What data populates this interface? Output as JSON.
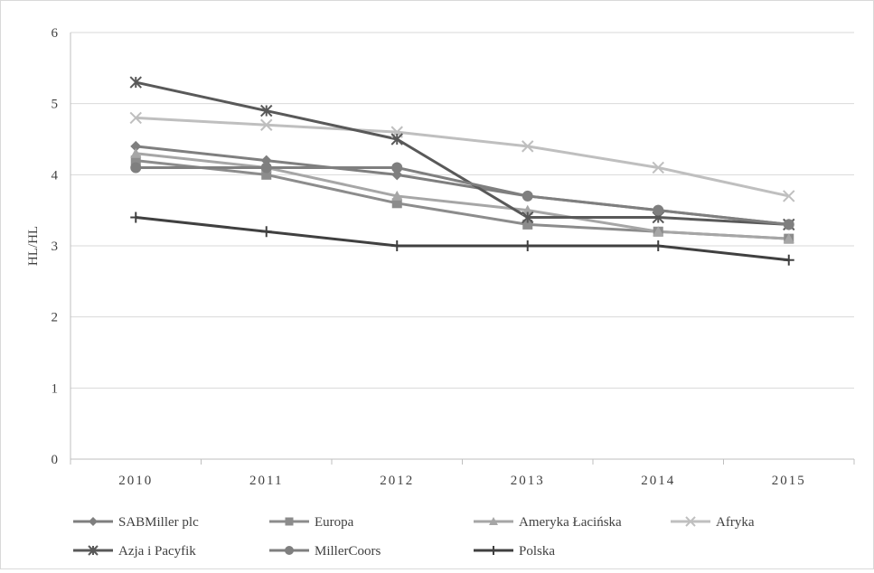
{
  "chart_data": {
    "type": "line",
    "title": "",
    "xlabel": "",
    "ylabel": "HL/HL",
    "categories": [
      "2010",
      "2011",
      "2012",
      "2013",
      "2014",
      "2015"
    ],
    "y_ticks": [
      "0",
      "1",
      "2",
      "3",
      "4",
      "5",
      "6"
    ],
    "ylim": [
      0,
      6
    ],
    "grid": "horizontal",
    "legend_position": "bottom",
    "series": [
      {
        "name": "SABMiller plc",
        "values": [
          4.4,
          4.2,
          4.0,
          3.7,
          3.5,
          3.3
        ],
        "color": "#7f7f7f",
        "marker": "diamond"
      },
      {
        "name": "Europa",
        "values": [
          4.2,
          4.0,
          3.6,
          3.3,
          3.2,
          3.1
        ],
        "color": "#8c8c8c",
        "marker": "square"
      },
      {
        "name": "Ameryka Łacińska",
        "values": [
          4.3,
          4.1,
          3.7,
          3.5,
          3.2,
          3.1
        ],
        "color": "#a6a6a6",
        "marker": "triangle"
      },
      {
        "name": "Afryka",
        "values": [
          4.8,
          4.7,
          4.6,
          4.4,
          4.1,
          3.7
        ],
        "color": "#bfbfbf",
        "marker": "x"
      },
      {
        "name": "Azja i Pacyfik",
        "values": [
          5.3,
          4.9,
          4.5,
          3.4,
          3.4,
          3.3
        ],
        "color": "#595959",
        "marker": "star"
      },
      {
        "name": "MillerCoors",
        "values": [
          4.1,
          4.1,
          4.1,
          3.7,
          3.5,
          3.3
        ],
        "color": "#7f7f7f",
        "marker": "circle"
      },
      {
        "name": "Polska",
        "values": [
          3.4,
          3.2,
          3.0,
          3.0,
          3.0,
          2.8
        ],
        "color": "#404040",
        "marker": "plus"
      }
    ]
  }
}
